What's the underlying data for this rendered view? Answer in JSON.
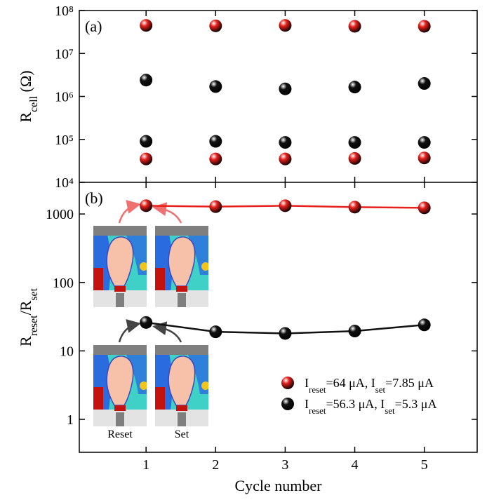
{
  "chart_data": [
    {
      "type": "scatter",
      "panel_label": "(a)",
      "log_y": true,
      "y_label": [
        {
          "text": "R"
        },
        {
          "text": "cell",
          "sub": true
        },
        {
          "text": " (Ω)"
        }
      ],
      "xlim": [
        0.04,
        5.76
      ],
      "xticks": [
        1,
        2,
        3,
        4,
        5
      ],
      "ylim": [
        10000,
        100000000
      ],
      "yticks": [
        {
          "value": 10000,
          "label": "10⁴"
        },
        {
          "value": 100000,
          "label": "10⁵"
        },
        {
          "value": 1000000,
          "label": "10⁶"
        },
        {
          "value": 10000000,
          "label": "10⁷"
        },
        {
          "value": 100000000,
          "label": "10⁸"
        }
      ],
      "x": [
        1,
        2,
        3,
        4,
        5
      ],
      "series": [
        {
          "color": "#e8201c",
          "values": [
            45000000,
            44000000,
            45000000,
            43000000,
            43000000
          ]
        },
        {
          "color": "#111111",
          "values": [
            2400000,
            1700000,
            1500000,
            1650000,
            2000000
          ]
        },
        {
          "color": "#111111",
          "values": [
            90000,
            90000,
            85000,
            85000,
            85000
          ]
        },
        {
          "color": "#e8201c",
          "values": [
            35000,
            35000,
            35000,
            36000,
            37000
          ]
        }
      ]
    },
    {
      "type": "line",
      "panel_label": "(b)",
      "log_y": true,
      "y_label": [
        {
          "text": "R"
        },
        {
          "text": "reset",
          "sub": true
        },
        {
          "text": "/R"
        },
        {
          "text": "set",
          "sub": true
        }
      ],
      "x_label": "Cycle number",
      "xlim": [
        0.04,
        5.76
      ],
      "xticks": [
        1,
        2,
        3,
        4,
        5
      ],
      "ylim": [
        0.33,
        2900
      ],
      "yticks": [
        1,
        10,
        100,
        1000
      ],
      "x": [
        1,
        2,
        3,
        4,
        5
      ],
      "legend": "lower right",
      "series": [
        {
          "name": [
            {
              "text": "I"
            },
            {
              "text": "reset",
              "sub": true
            },
            {
              "text": "=64 μA, I"
            },
            {
              "text": "set",
              "sub": true
            },
            {
              "text": "=7.85 μA"
            }
          ],
          "color": "#e8201c",
          "values": [
            1320,
            1280,
            1320,
            1260,
            1230
          ]
        },
        {
          "name": [
            {
              "text": "I"
            },
            {
              "text": "reset",
              "sub": true
            },
            {
              "text": "=56.3 μA, I"
            },
            {
              "text": "set",
              "sub": true
            },
            {
              "text": "=5.3 μA"
            }
          ],
          "color": "#111111",
          "values": [
            26,
            19,
            18,
            19.5,
            24
          ]
        }
      ],
      "inset_labels": [
        "Reset",
        "Set"
      ]
    }
  ]
}
